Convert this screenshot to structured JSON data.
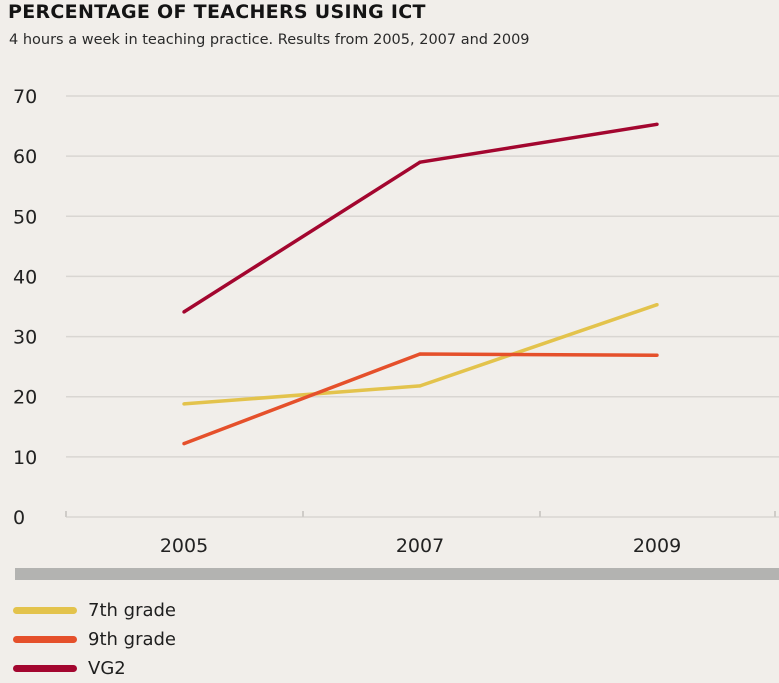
{
  "header": {
    "title": "PERCENTAGE OF TEACHERS USING ICT",
    "subtitle": "4 hours a week in teaching practice. Results from 2005, 2007 and 2009"
  },
  "chart_data": {
    "type": "line",
    "x": [
      "2005",
      "2007",
      "2009"
    ],
    "ylim": [
      0,
      70
    ],
    "yticks": [
      0,
      10,
      20,
      30,
      40,
      50,
      60,
      70
    ],
    "grid": true,
    "legend_position": "bottom-left",
    "series": [
      {
        "name": "7th grade",
        "color": "#e3c34c",
        "values": [
          18.8,
          21.8,
          35.3
        ]
      },
      {
        "name": "9th grade",
        "color": "#e5502b",
        "values": [
          12.2,
          27.1,
          26.9
        ]
      },
      {
        "name": "VG2",
        "color": "#a3062f",
        "values": [
          34.1,
          59.0,
          65.3
        ]
      }
    ]
  }
}
